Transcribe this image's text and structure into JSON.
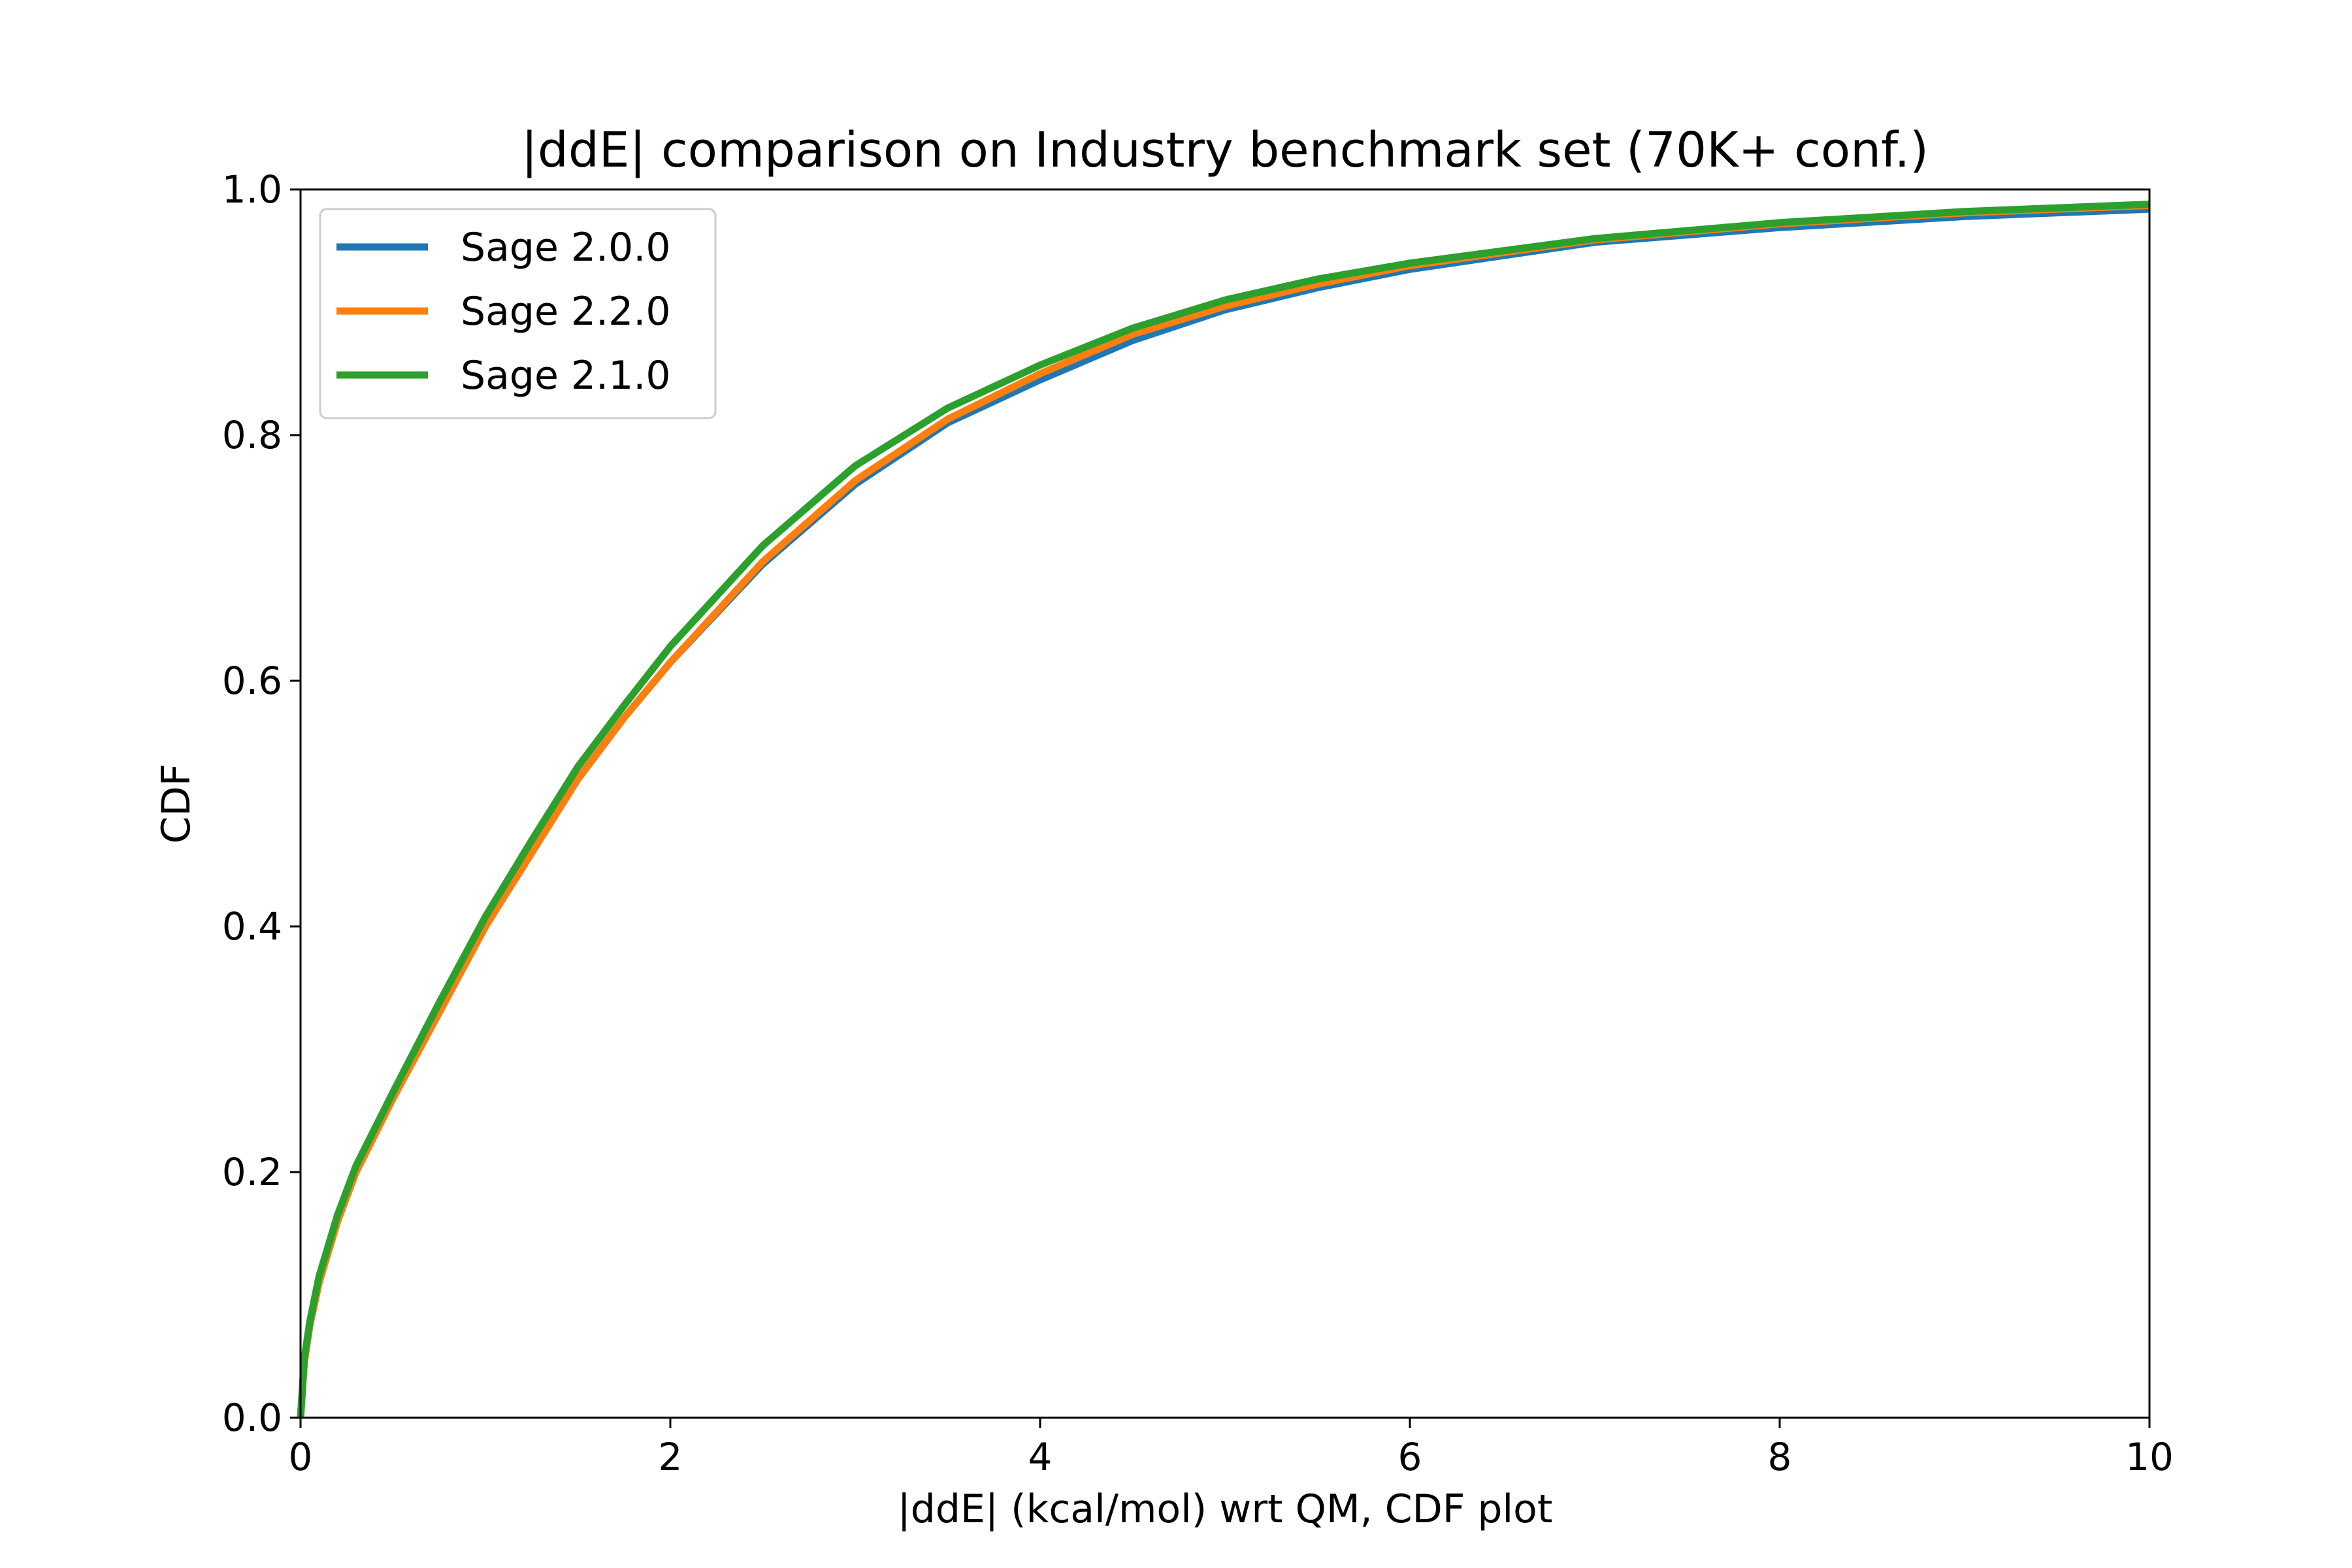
{
  "chart_data": {
    "type": "line",
    "title": "|ddE| comparison on Industry benchmark set (70K+ conf.)",
    "xlabel": "|ddE| (kcal/mol) wrt QM, CDF plot",
    "ylabel": "CDF",
    "xlim": [
      0,
      10
    ],
    "ylim": [
      0.0,
      1.0
    ],
    "xticks": [
      0,
      2,
      4,
      6,
      8,
      10
    ],
    "xtick_labels": [
      "0",
      "2",
      "4",
      "6",
      "8",
      "10"
    ],
    "yticks": [
      0.0,
      0.2,
      0.4,
      0.6,
      0.8,
      1.0
    ],
    "ytick_labels": [
      "0.0",
      "0.2",
      "0.4",
      "0.6",
      "0.8",
      "1.0"
    ],
    "grid": false,
    "legend_position": "upper-left",
    "series": [
      {
        "name": "Sage 2.0.0",
        "color": "#1f77b4",
        "x": [
          0,
          0.02,
          0.05,
          0.1,
          0.2,
          0.3,
          0.5,
          0.75,
          1.0,
          1.25,
          1.5,
          1.75,
          2.0,
          2.5,
          3.0,
          3.5,
          4.0,
          4.5,
          5.0,
          5.5,
          6.0,
          7.0,
          8.0,
          9.0,
          10.0
        ],
        "y": [
          0.0,
          0.045,
          0.075,
          0.11,
          0.16,
          0.2,
          0.26,
          0.33,
          0.4,
          0.46,
          0.52,
          0.57,
          0.615,
          0.695,
          0.76,
          0.81,
          0.845,
          0.877,
          0.902,
          0.92,
          0.935,
          0.957,
          0.969,
          0.978,
          0.984
        ]
      },
      {
        "name": "Sage 2.2.0",
        "color": "#ff7f0e",
        "x": [
          0,
          0.02,
          0.05,
          0.1,
          0.2,
          0.3,
          0.5,
          0.75,
          1.0,
          1.25,
          1.5,
          1.75,
          2.0,
          2.5,
          3.0,
          3.5,
          4.0,
          4.5,
          5.0,
          5.5,
          6.0,
          7.0,
          8.0,
          9.0,
          10.0
        ],
        "y": [
          0.0,
          0.045,
          0.075,
          0.11,
          0.16,
          0.2,
          0.26,
          0.33,
          0.4,
          0.46,
          0.52,
          0.57,
          0.615,
          0.697,
          0.763,
          0.813,
          0.85,
          0.882,
          0.905,
          0.923,
          0.938,
          0.959,
          0.972,
          0.981,
          0.987
        ]
      },
      {
        "name": "Sage 2.1.0",
        "color": "#2ca02c",
        "x": [
          0,
          0.02,
          0.05,
          0.1,
          0.2,
          0.3,
          0.5,
          0.75,
          1.0,
          1.25,
          1.5,
          1.75,
          2.0,
          2.5,
          3.0,
          3.5,
          4.0,
          4.5,
          5.0,
          5.5,
          6.0,
          7.0,
          8.0,
          9.0,
          10.0
        ],
        "y": [
          0.0,
          0.048,
          0.078,
          0.115,
          0.165,
          0.205,
          0.265,
          0.338,
          0.408,
          0.47,
          0.53,
          0.58,
          0.628,
          0.71,
          0.775,
          0.822,
          0.857,
          0.887,
          0.91,
          0.927,
          0.94,
          0.96,
          0.973,
          0.982,
          0.988
        ]
      }
    ]
  }
}
